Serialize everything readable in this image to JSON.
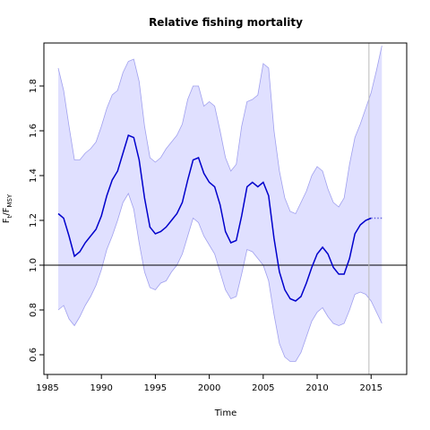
{
  "chart_data": {
    "type": "line",
    "title": "Relative fishing mortality",
    "xlabel": "Time",
    "ylabel_parts": [
      "F",
      "t",
      "/F",
      "MSY"
    ],
    "x": [
      1986,
      1986.5,
      1987,
      1987.5,
      1988,
      1988.5,
      1989,
      1989.5,
      1990,
      1990.5,
      1991,
      1991.5,
      1992,
      1992.5,
      1993,
      1993.5,
      1994,
      1994.5,
      1995,
      1995.5,
      1996,
      1996.5,
      1997,
      1997.5,
      1998,
      1998.5,
      1999,
      1999.5,
      2000,
      2000.5,
      2001,
      2001.5,
      2002,
      2002.5,
      2003,
      2003.5,
      2004,
      2004.5,
      2005,
      2005.5,
      2006,
      2006.5,
      2007,
      2007.5,
      2008,
      2008.5,
      2009,
      2009.5,
      2010,
      2010.5,
      2011,
      2011.5,
      2012,
      2012.5,
      2013,
      2013.5,
      2014,
      2014.5,
      2015,
      2015.5,
      2016
    ],
    "series": [
      {
        "color": "#0000cc",
        "dash": "solid",
        "values": [
          1.23,
          1.21,
          1.13,
          1.04,
          1.06,
          1.1,
          1.13,
          1.16,
          1.22,
          1.31,
          1.38,
          1.42,
          1.5,
          1.58,
          1.57,
          1.47,
          1.3,
          1.17,
          1.14,
          1.15,
          1.17,
          1.2,
          1.23,
          1.28,
          1.38,
          1.47,
          1.48,
          1.41,
          1.37,
          1.35,
          1.27,
          1.15,
          1.1,
          1.11,
          1.22,
          1.35,
          1.37,
          1.35,
          1.37,
          1.31,
          1.12,
          0.97,
          0.89,
          0.85,
          0.84,
          0.86,
          0.92,
          0.99,
          1.05,
          1.08,
          1.05,
          0.99,
          0.96,
          0.96,
          1.03,
          1.14,
          1.18,
          1.2,
          1.21,
          null,
          null
        ]
      },
      {
        "color": "#6666dd",
        "dash": "dotted",
        "values": [
          null,
          null,
          null,
          null,
          null,
          null,
          null,
          null,
          null,
          null,
          null,
          null,
          null,
          null,
          null,
          null,
          null,
          null,
          null,
          null,
          null,
          null,
          null,
          null,
          null,
          null,
          null,
          null,
          null,
          null,
          null,
          null,
          null,
          null,
          null,
          null,
          null,
          null,
          null,
          null,
          null,
          null,
          null,
          null,
          null,
          null,
          null,
          null,
          null,
          null,
          null,
          null,
          null,
          null,
          null,
          null,
          null,
          null,
          1.21,
          1.21,
          1.21
        ]
      }
    ],
    "band": {
      "color": "#e0e0ff",
      "edge": "#a0a0ee",
      "upper": [
        1.88,
        1.78,
        1.62,
        1.47,
        1.47,
        1.5,
        1.52,
        1.55,
        1.62,
        1.7,
        1.76,
        1.78,
        1.86,
        1.91,
        1.92,
        1.82,
        1.62,
        1.48,
        1.46,
        1.48,
        1.52,
        1.55,
        1.58,
        1.63,
        1.74,
        1.8,
        1.8,
        1.71,
        1.73,
        1.71,
        1.6,
        1.48,
        1.42,
        1.45,
        1.62,
        1.73,
        1.74,
        1.76,
        1.9,
        1.88,
        1.6,
        1.42,
        1.3,
        1.24,
        1.23,
        1.28,
        1.33,
        1.4,
        1.44,
        1.42,
        1.34,
        1.28,
        1.26,
        1.3,
        1.45,
        1.57,
        1.63,
        1.7,
        1.77,
        1.87,
        1.98
      ],
      "lower": [
        0.8,
        0.82,
        0.76,
        0.73,
        0.77,
        0.82,
        0.86,
        0.91,
        0.98,
        1.07,
        1.13,
        1.2,
        1.28,
        1.32,
        1.25,
        1.1,
        0.97,
        0.9,
        0.89,
        0.92,
        0.93,
        0.97,
        1.0,
        1.05,
        1.13,
        1.21,
        1.19,
        1.13,
        1.09,
        1.05,
        0.97,
        0.89,
        0.85,
        0.86,
        0.96,
        1.07,
        1.06,
        1.03,
        1.0,
        0.93,
        0.78,
        0.65,
        0.59,
        0.57,
        0.57,
        0.61,
        0.68,
        0.75,
        0.79,
        0.81,
        0.77,
        0.74,
        0.73,
        0.74,
        0.8,
        0.87,
        0.88,
        0.87,
        0.84,
        0.79,
        0.74
      ]
    },
    "hline": 1.0,
    "vline": 2014.8,
    "xlim": [
      1984.67,
      2018.3
    ],
    "ylim": [
      0.512,
      1.992
    ],
    "xticks": [
      1985,
      1990,
      1995,
      2000,
      2005,
      2010,
      2015
    ],
    "yticks": [
      0.6,
      0.8,
      {
        "value": 1,
        "label": "1.0"
      },
      1.2,
      1.4,
      1.6,
      1.8
    ]
  }
}
